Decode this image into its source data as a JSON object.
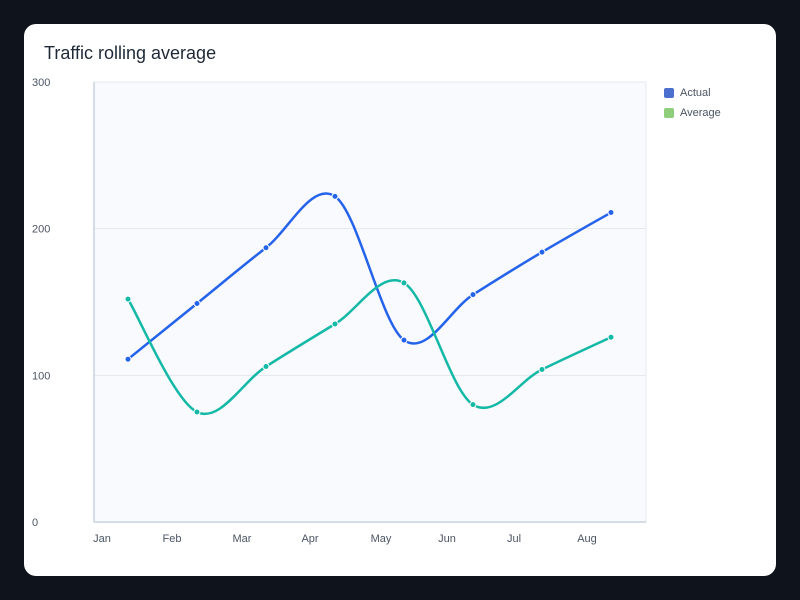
{
  "chart_data": {
    "type": "line",
    "title": "Traffic rolling average",
    "categories": [
      "Jan",
      "Feb",
      "Mar",
      "Apr",
      "May",
      "Jun",
      "Jul",
      "Aug"
    ],
    "ylim": [
      0,
      300
    ],
    "yticks": [
      0,
      100,
      200,
      300
    ],
    "grid": true,
    "legend_position": "right",
    "series": [
      {
        "name": "Actual",
        "color": "#2563eb",
        "legend_color": "#4b6fcf",
        "values": [
          111,
          149,
          187,
          222,
          124,
          155,
          184,
          211
        ]
      },
      {
        "name": "Average",
        "color": "#14b8a6",
        "legend_color": "#8fcf7b",
        "values": [
          152,
          75,
          106,
          135,
          163,
          80,
          104,
          126
        ]
      }
    ]
  }
}
